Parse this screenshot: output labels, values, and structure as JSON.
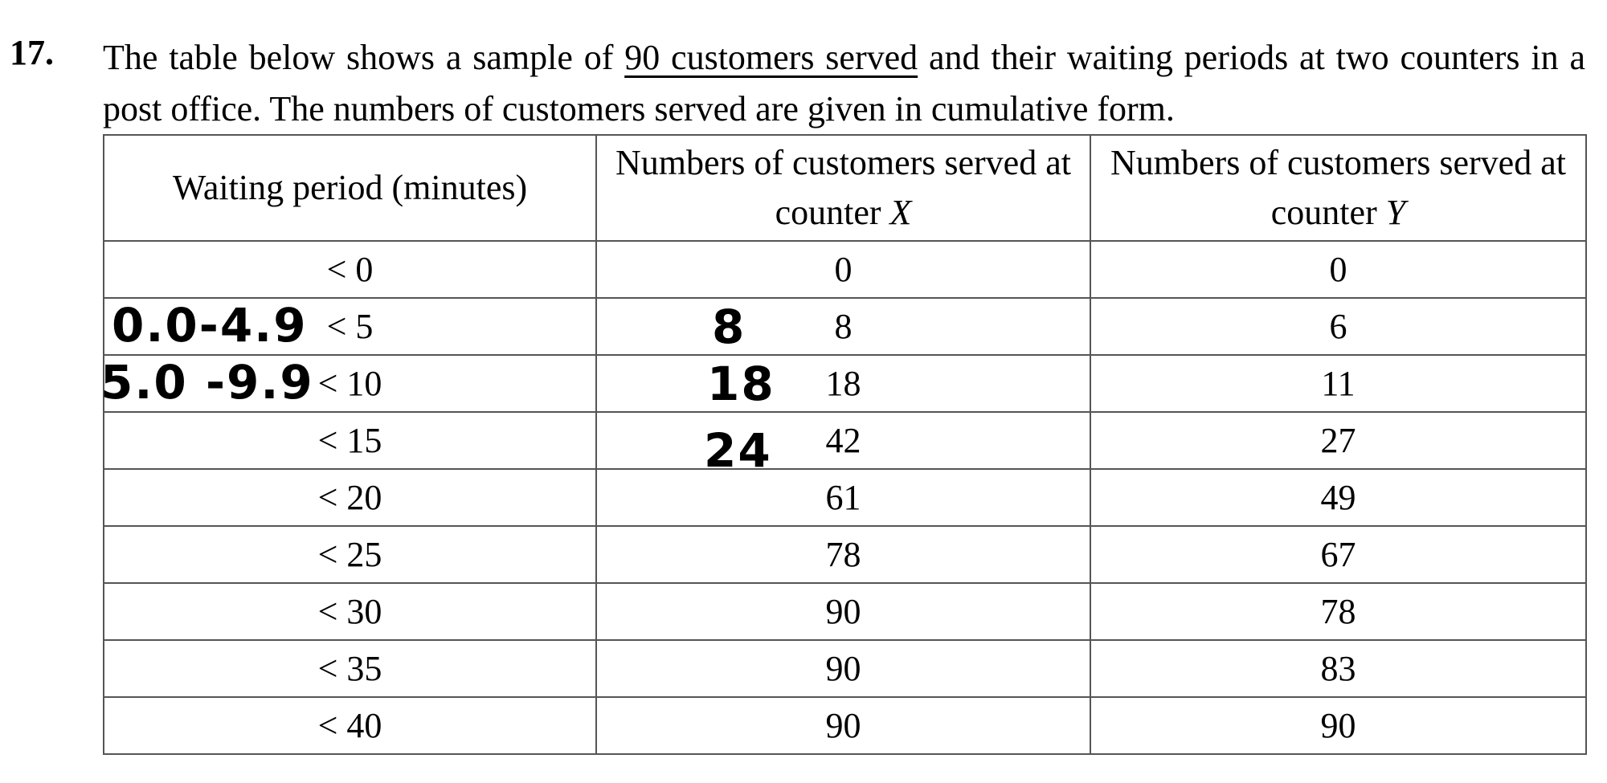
{
  "question": {
    "number": "17.",
    "text": [
      "The table below shows a sample of ",
      "90 customers served",
      " and their waiting periods at two counters in a post office. The numbers of customers served are given in cumulative form."
    ]
  },
  "table": {
    "headers": [
      {
        "text": "Waiting period (minutes)"
      },
      {
        "text": "Numbers of customers served at counter ",
        "var": "X"
      },
      {
        "text": "Numbers of customers served at counter ",
        "var": "Y"
      }
    ],
    "rows": [
      [
        "< 0",
        0,
        0
      ],
      [
        "< 5",
        8,
        6
      ],
      [
        "< 10",
        18,
        11
      ],
      [
        "< 15",
        42,
        27
      ],
      [
        "< 20",
        61,
        49
      ],
      [
        "< 25",
        78,
        67
      ],
      [
        "< 30",
        90,
        78
      ],
      [
        "< 35",
        90,
        83
      ],
      [
        "< 40",
        90,
        90
      ]
    ]
  },
  "annotations": [
    {
      "text": "0.0-4.9",
      "row": 1,
      "col": 0
    },
    {
      "text": "5.0 -9.9",
      "row": 2,
      "col": 0
    },
    {
      "text": "8",
      "row": 1,
      "col": 1
    },
    {
      "text": "18",
      "row": 2,
      "col": 1
    },
    {
      "text": "24",
      "row": 3,
      "col": 1
    }
  ]
}
